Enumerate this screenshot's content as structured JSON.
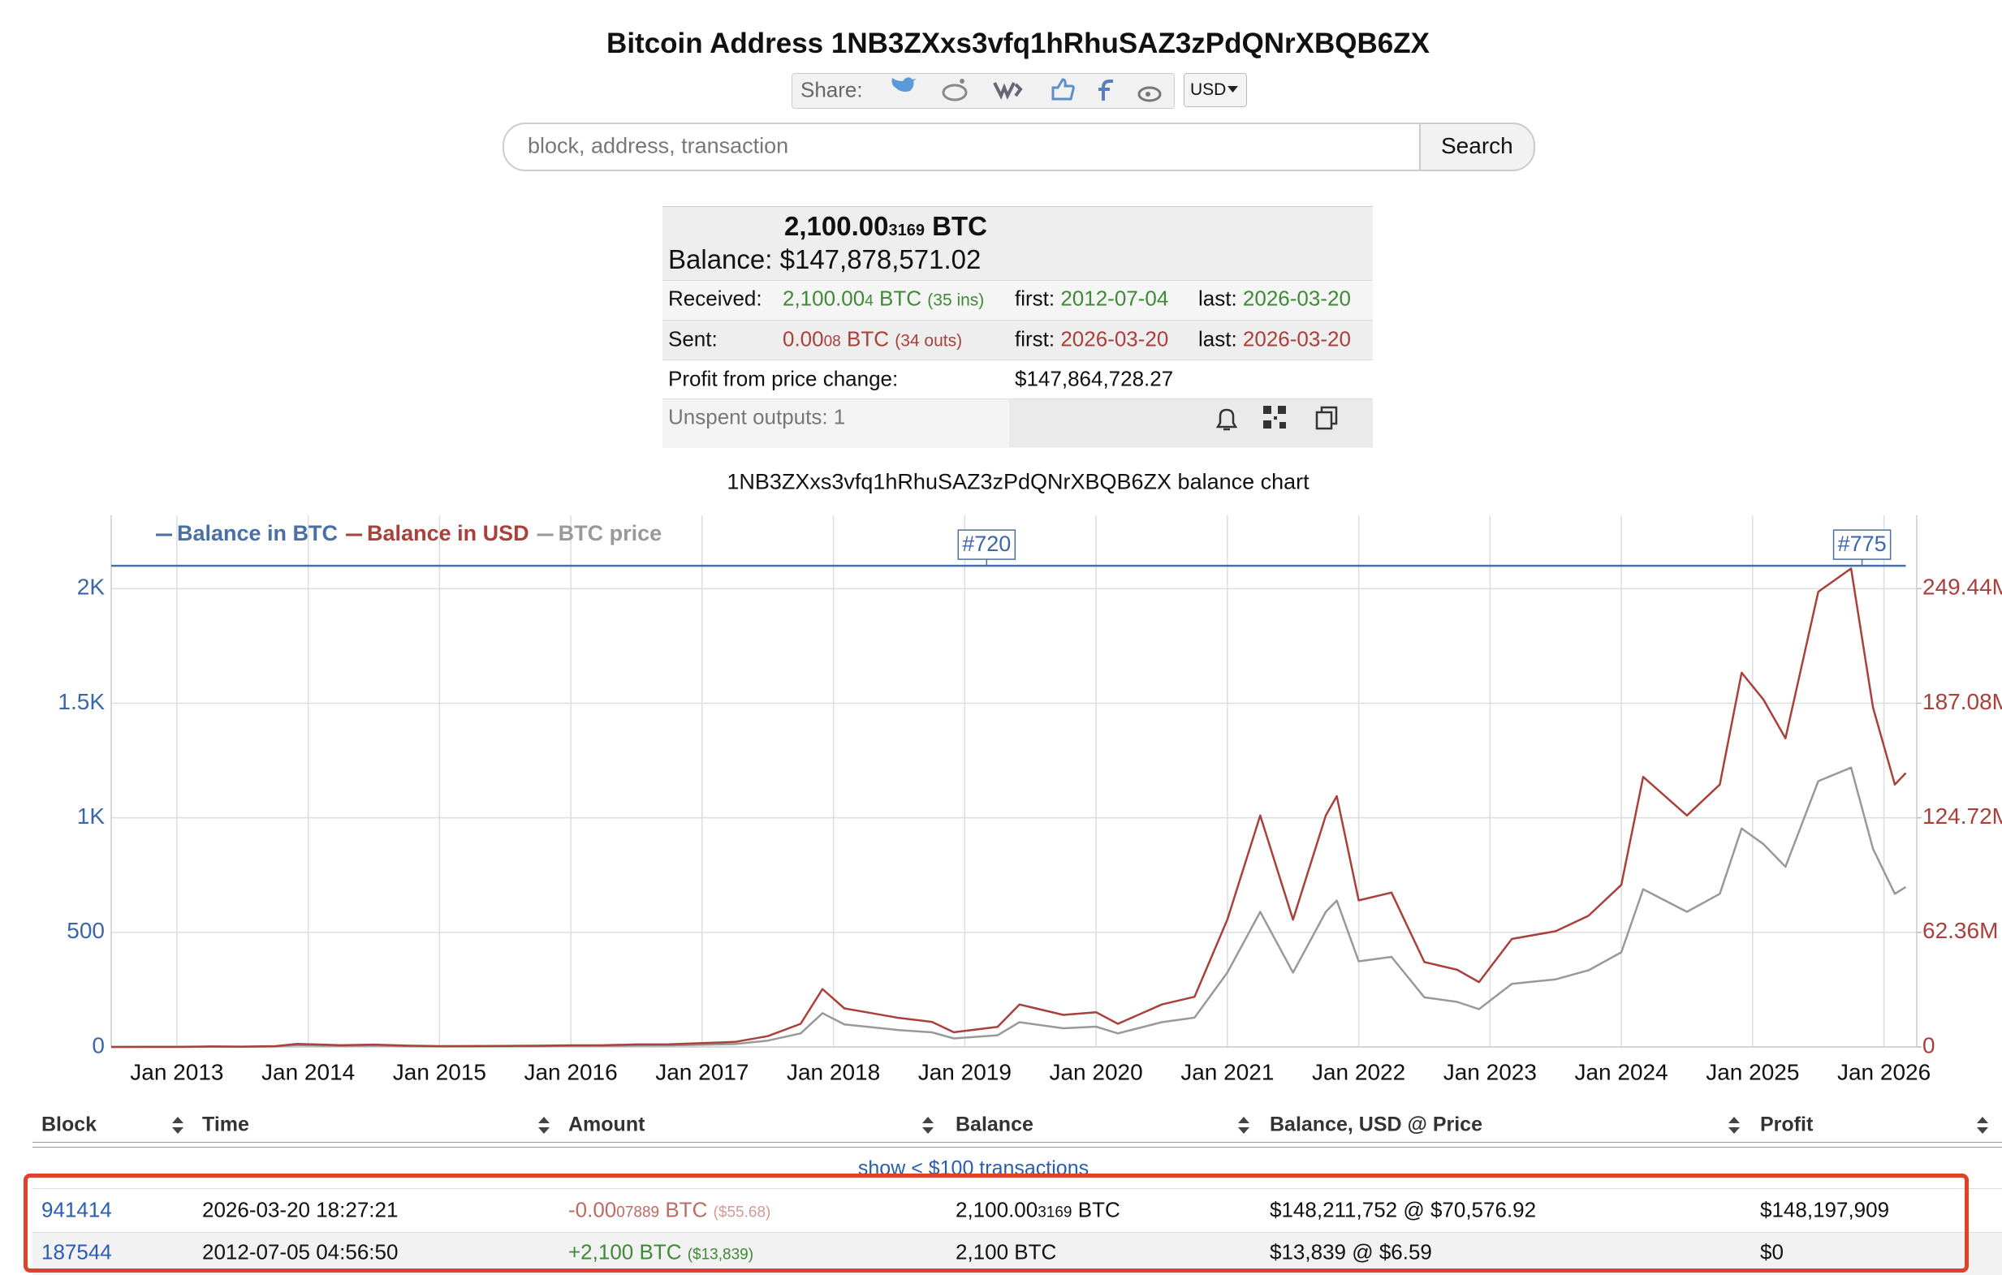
{
  "header": {
    "title": "Bitcoin Address 1NB3ZXxs3vfq1hRhuSAZ3zPdQNrXBQB6ZX",
    "share_label": "Share:",
    "currency": "USD"
  },
  "search": {
    "placeholder": "block, address, transaction",
    "button": "Search"
  },
  "summary": {
    "btc_main": "2,100.00",
    "btc_small": "3169",
    "btc_unit": "BTC",
    "balance_label": "Balance:",
    "balance_usd": "$147,878,571.02",
    "received": {
      "label": "Received:",
      "amount_main": "2,100.00",
      "amount_small": "4",
      "unit": "BTC",
      "count": "(35 ins)",
      "first_label": "first:",
      "first": "2012-07-04",
      "last_label": "last:",
      "last": "2026-03-20"
    },
    "sent": {
      "label": "Sent:",
      "amount_main": "0.00",
      "amount_small": "08",
      "unit": "BTC",
      "count": "(34 outs)",
      "first_label": "first:",
      "first": "2026-03-20",
      "last_label": "last:",
      "last": "2026-03-20"
    },
    "profit": {
      "label": "Profit from price change:",
      "value": "$147,864,728.27"
    },
    "unspent": "Unspent outputs: 1"
  },
  "chart_data": {
    "type": "line",
    "title": "1NB3ZXxs3vfq1hRhuSAZ3zPdQNrXBQB6ZX balance chart",
    "x": [
      "2012-07",
      "2012-10",
      "2013-01",
      "2013-04",
      "2013-07",
      "2013-10",
      "2013-12",
      "2014-04",
      "2014-07",
      "2014-10",
      "2015-01",
      "2015-04",
      "2015-07",
      "2015-10",
      "2016-01",
      "2016-04",
      "2016-07",
      "2016-10",
      "2017-01",
      "2017-04",
      "2017-07",
      "2017-10",
      "2017-12",
      "2018-02",
      "2018-04",
      "2018-07",
      "2018-10",
      "2018-12",
      "2019-04",
      "2019-06",
      "2019-10",
      "2020-01",
      "2020-03",
      "2020-07",
      "2020-10",
      "2021-01",
      "2021-04",
      "2021-07",
      "2021-10",
      "2021-11",
      "2022-01",
      "2022-04",
      "2022-07",
      "2022-10",
      "2022-12",
      "2023-03",
      "2023-07",
      "2023-10",
      "2024-01",
      "2024-03",
      "2024-07",
      "2024-10",
      "2024-12",
      "2025-02",
      "2025-04",
      "2025-07",
      "2025-10",
      "2025-12",
      "2026-02",
      "2026-03"
    ],
    "series": [
      {
        "name": "Balance in BTC",
        "color": "#4a6fa5",
        "axis": "y",
        "values": [
          2100,
          2100,
          2100,
          2100,
          2100,
          2100,
          2100,
          2100,
          2100,
          2100,
          2100,
          2100,
          2100,
          2100,
          2100,
          2100,
          2100,
          2100,
          2100,
          2100,
          2100,
          2100,
          2100,
          2100,
          2100,
          2100,
          2100,
          2100,
          2100,
          2100,
          2100,
          2100,
          2100,
          2100,
          2100,
          2100,
          2100,
          2100,
          2100,
          2100,
          2100,
          2100,
          2100,
          2100,
          2100,
          2100,
          2100,
          2100,
          2100,
          2100,
          2100,
          2100,
          2100,
          2100,
          2100,
          2100,
          2100,
          2100,
          2100,
          2100
        ]
      },
      {
        "name": "Balance in USD",
        "color": "#a9403b",
        "axis": "y2",
        "values": [
          14700,
          23100,
          29400,
          273000,
          189000,
          420000,
          1680000,
          945000,
          1260000,
          693000,
          462000,
          483000,
          588000,
          651000,
          882000,
          945000,
          1365000,
          1470000,
          2100000,
          2730000,
          5880000,
          12600000,
          31500000,
          21000000,
          18900000,
          15750000,
          13650000,
          7980000,
          10920000,
          23100000,
          17430000,
          18900000,
          12600000,
          23100000,
          27300000,
          69300000,
          126000000,
          69300000,
          126000000,
          136500000,
          79800000,
          84000000,
          46200000,
          42000000,
          35280000,
          58800000,
          63000000,
          71400000,
          88200000,
          147000000,
          126000000,
          142800000,
          203700000,
          189000000,
          168000000,
          247800000,
          260400000,
          184800000,
          142800000,
          149100000
        ]
      },
      {
        "name": "BTC price",
        "color": "#999999",
        "axis": "y3",
        "values": [
          7,
          11,
          14,
          130,
          90,
          200,
          800,
          450,
          600,
          330,
          220,
          230,
          280,
          310,
          420,
          450,
          650,
          700,
          1000,
          1300,
          2800,
          6000,
          15000,
          10000,
          9000,
          7500,
          6500,
          3800,
          5200,
          11000,
          8300,
          9000,
          6000,
          11000,
          13000,
          33000,
          60000,
          33000,
          60000,
          65000,
          38000,
          40000,
          22000,
          20000,
          16800,
          28000,
          30000,
          34000,
          42000,
          70000,
          60000,
          68000,
          97000,
          90000,
          80000,
          118000,
          124000,
          88000,
          68000,
          71000
        ]
      }
    ],
    "xlim": [
      "2012-07",
      "2026-04"
    ],
    "xticks": [
      {
        "value": "2013-01",
        "label": "Jan 2013"
      },
      {
        "value": "2014-01",
        "label": "Jan 2014"
      },
      {
        "value": "2015-01",
        "label": "Jan 2015"
      },
      {
        "value": "2016-01",
        "label": "Jan 2016"
      },
      {
        "value": "2017-01",
        "label": "Jan 2017"
      },
      {
        "value": "2018-01",
        "label": "Jan 2018"
      },
      {
        "value": "2019-01",
        "label": "Jan 2019"
      },
      {
        "value": "2020-01",
        "label": "Jan 2020"
      },
      {
        "value": "2021-01",
        "label": "Jan 2021"
      },
      {
        "value": "2022-01",
        "label": "Jan 2022"
      },
      {
        "value": "2023-01",
        "label": "Jan 2023"
      },
      {
        "value": "2024-01",
        "label": "Jan 2024"
      },
      {
        "value": "2025-01",
        "label": "Jan 2025"
      },
      {
        "value": "2026-01",
        "label": "Jan 2026"
      }
    ],
    "ylim": [
      0,
      2320
    ],
    "yticks": [
      0,
      500,
      {
        "value": 1000,
        "label": "1K"
      },
      {
        "value": 1500,
        "label": "1.5K"
      },
      {
        "value": 2000,
        "label": "2K"
      }
    ],
    "y2lim": [
      0,
      289350400
    ],
    "y2ticks": [
      0,
      {
        "value": 62360000,
        "label": "62.36M"
      },
      {
        "value": 124720000,
        "label": "124.72M"
      },
      {
        "value": 187080000,
        "label": "187.08M"
      },
      {
        "value": 249440000,
        "label": "249.44M"
      }
    ],
    "y3lim": [
      0,
      236000
    ],
    "grid": true,
    "legend": "top-left",
    "annotations": [
      {
        "label": "#720",
        "x": "2019-03"
      },
      {
        "label": "#775",
        "x": "2025-11"
      }
    ]
  },
  "table": {
    "headers": [
      "Block",
      "Time",
      "Amount",
      "Balance",
      "Balance, USD @ Price",
      "Profit"
    ],
    "show_link": "show < $100 transactions",
    "rows": [
      {
        "block": "941414",
        "time": "2026-03-20 18:27:21",
        "amount": {
          "main": "-0.00",
          "small": "07889",
          "unit": "BTC",
          "usd": "($55.68)"
        },
        "balance": {
          "main": "2,100.00",
          "small": "3169",
          "unit": "BTC"
        },
        "balance_usd": "$148,211,752 @ $70,576.92",
        "profit": "$148,197,909"
      },
      {
        "block": "187544",
        "time": "2012-07-05 04:56:50",
        "amount": {
          "main": "+2,100",
          "unit": "BTC",
          "usd": "($13,839)"
        },
        "balance": "2,100 BTC",
        "balance_usd": "$13,839 @ $6.59",
        "profit": "$0"
      }
    ]
  }
}
